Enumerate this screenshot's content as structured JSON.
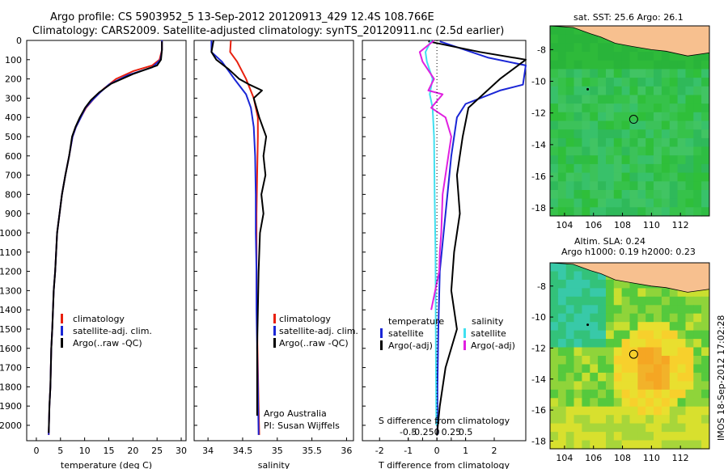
{
  "header": {
    "title_line1": "Argo profile: CS 5903952_5 13-Sep-2012 20120913_429 12.4S 108.766E",
    "title_line2": "Climatology: CARS2009. Satellite-adjusted climatology: synTS_20120911.nc (2.5d earlier)"
  },
  "footer": {
    "stamp": "IMOS 18-Sep-2012 17:02:28"
  },
  "colors": {
    "climatology": "#e8200e",
    "satellite": "#1a26d6",
    "argo": "#000000",
    "salinity_sat": "#40e0f0",
    "salinity_argo": "#e020e0",
    "land": "#f7c08f",
    "green": "#34c63c"
  },
  "chart_data": [
    {
      "id": "temperature",
      "type": "line",
      "xlabel": "temperature (deg C)",
      "ylabel": "",
      "xlim": [
        -2,
        31
      ],
      "ylim": [
        2080,
        0
      ],
      "xticks": [
        0,
        5,
        10,
        15,
        20,
        25,
        30
      ],
      "yticks": [
        0,
        100,
        200,
        300,
        400,
        500,
        600,
        700,
        800,
        900,
        1000,
        1100,
        1200,
        1300,
        1400,
        1500,
        1600,
        1700,
        1800,
        1900,
        2000
      ],
      "legend": [
        "climatology",
        "satellite-adj. clim.",
        "Argo(..raw -QC)"
      ],
      "series": [
        {
          "name": "climatology",
          "color": "#e8200e",
          "x": [
            26,
            26,
            25.5,
            24,
            20,
            16.5,
            14,
            12,
            10.3,
            9.2,
            8.2,
            7.5,
            6.8,
            6,
            5.3,
            4.8,
            4.3,
            3.9,
            3.6,
            3.3,
            3.1,
            2.9,
            2.7,
            2.55
          ],
          "y": [
            0,
            50,
            100,
            130,
            160,
            200,
            250,
            300,
            350,
            400,
            450,
            500,
            600,
            700,
            800,
            900,
            1000,
            1200,
            1300,
            1500,
            1600,
            1800,
            1900,
            2050
          ]
        },
        {
          "name": "satellite-adj. clim.",
          "color": "#1a26d6",
          "x": [
            26,
            26,
            25.7,
            24,
            19,
            15,
            13.2,
            11.6,
            10.2,
            9.2,
            8.2,
            7.5,
            6.8,
            6,
            5.3,
            4.8,
            4.3,
            3.9,
            3.6,
            3.3,
            3.1,
            2.9,
            2.7,
            2.55
          ],
          "y": [
            0,
            50,
            100,
            140,
            180,
            230,
            270,
            310,
            350,
            400,
            450,
            500,
            600,
            700,
            800,
            900,
            1000,
            1200,
            1300,
            1500,
            1600,
            1800,
            1900,
            2050
          ]
        },
        {
          "name": "Argo(..raw -QC)",
          "color": "#000000",
          "x": [
            26,
            26,
            25.8,
            25,
            20,
            15.5,
            13,
            11.3,
            10.1,
            9,
            8.1,
            7.4,
            6.8,
            6,
            5.3,
            4.8,
            4.3,
            3.9,
            3.6,
            3.3,
            3.1,
            2.9,
            2.7,
            2.55
          ],
          "y": [
            5,
            50,
            100,
            130,
            175,
            225,
            270,
            310,
            350,
            400,
            450,
            500,
            600,
            700,
            800,
            900,
            1000,
            1200,
            1300,
            1500,
            1600,
            1800,
            1900,
            2040
          ]
        }
      ]
    },
    {
      "id": "salinity",
      "type": "line",
      "xlabel": "salinity",
      "ylabel": "",
      "xlim": [
        33.8,
        36.1
      ],
      "ylim": [
        2080,
        0
      ],
      "xticks": [
        34,
        34.5,
        35,
        35.5,
        36
      ],
      "legend": [
        "climatology",
        "satellite-adj. clim.",
        "Argo(..raw -QC)"
      ],
      "annotation": [
        "Argo Australia",
        "PI: Susan Wijffels"
      ],
      "series": [
        {
          "name": "climatology",
          "color": "#e8200e",
          "x": [
            34.33,
            34.32,
            34.42,
            34.55,
            34.66,
            34.72,
            34.72,
            34.71,
            34.7,
            34.7,
            34.7,
            34.71,
            34.72,
            34.73,
            34.74
          ],
          "y": [
            0,
            60,
            110,
            200,
            300,
            400,
            500,
            700,
            900,
            1100,
            1300,
            1500,
            1700,
            1900,
            2050
          ]
        },
        {
          "name": "satellite-adj. clim.",
          "color": "#1a26d6",
          "x": [
            34.05,
            34.05,
            34.2,
            34.38,
            34.55,
            34.62,
            34.66,
            34.68,
            34.69,
            34.69,
            34.7,
            34.7,
            34.71,
            34.72,
            34.73
          ],
          "y": [
            0,
            60,
            110,
            200,
            280,
            350,
            450,
            600,
            800,
            1000,
            1200,
            1400,
            1600,
            1800,
            2050
          ]
        },
        {
          "name": "Argo(..raw -QC)",
          "color": "#000000",
          "x": [
            34.08,
            34.05,
            34.12,
            34.3,
            34.45,
            34.6,
            34.78,
            34.66,
            34.74,
            34.84,
            34.8,
            34.83,
            34.77,
            34.8,
            34.75,
            34.73,
            34.72,
            34.71,
            34.71,
            34.71
          ],
          "y": [
            0,
            60,
            100,
            150,
            200,
            230,
            260,
            300,
            400,
            500,
            600,
            700,
            800,
            900,
            1000,
            1200,
            1400,
            1600,
            1800,
            1950
          ]
        }
      ]
    },
    {
      "id": "differences",
      "type": "line",
      "xlabel": "T difference from climatology",
      "x2label": "S difference from climatology",
      "xlim": [
        -2.6,
        3.1
      ],
      "ylim": [
        2080,
        0
      ],
      "xticks": [
        -2,
        -1,
        0,
        1,
        2
      ],
      "x2ticks": [
        "-0.5",
        "-0.25",
        "0",
        "0.25",
        "0.5"
      ],
      "legend_temperature": [
        "temperature",
        "satellite",
        "Argo(-adj)"
      ],
      "legend_salinity": [
        "salinity",
        "satellite",
        "Argo(-adj)"
      ],
      "series": [
        {
          "name": "temperature satellite",
          "color": "#1a26d6",
          "x": [
            0.1,
            1.8,
            3.1,
            3,
            2.2,
            1,
            0.7,
            0.5,
            0.3,
            0.1,
            0.05,
            0.02,
            0.02
          ],
          "y": [
            5,
            90,
            130,
            230,
            260,
            330,
            400,
            600,
            900,
            1200,
            1500,
            1800,
            2050
          ]
        },
        {
          "name": "temperature Argo(-adj)",
          "color": "#000000",
          "x": [
            -0.3,
            1.5,
            3.1,
            2.2,
            1.1,
            0.9,
            0.7,
            0.8,
            0.6,
            0.5,
            0.7,
            0.3,
            0.1,
            0
          ],
          "y": [
            5,
            60,
            100,
            200,
            350,
            500,
            700,
            900,
            1100,
            1300,
            1500,
            1700,
            1900,
            2050
          ]
        },
        {
          "name": "salinity satellite",
          "color": "#40e0f0",
          "x": [
            -0.2,
            -0.4,
            -0.35,
            -0.15,
            -0.25,
            -0.15,
            -0.1,
            -0.08,
            -0.05,
            -0.04,
            -0.02
          ],
          "y": [
            0,
            60,
            110,
            200,
            280,
            350,
            500,
            800,
            1100,
            1500,
            2000
          ]
        },
        {
          "name": "salinity Argo(-adj)",
          "color": "#e020e0",
          "x": [
            -0.1,
            -0.6,
            -0.5,
            -0.1,
            -0.3,
            0.2,
            -0.2,
            0.3,
            0.5,
            0.4,
            0.2,
            0.15,
            0.1,
            0.08,
            -0.2
          ],
          "y": [
            0,
            60,
            110,
            200,
            260,
            280,
            350,
            400,
            500,
            600,
            800,
            1000,
            1100,
            1200,
            1400
          ]
        }
      ]
    },
    {
      "id": "sst_map",
      "type": "heatmap",
      "title": "sat. SST: 25.6 Argo: 26.1",
      "xticks": [
        104,
        106,
        108,
        110,
        112
      ],
      "yticks": [
        -8,
        -10,
        -12,
        -14,
        -16,
        -18
      ],
      "xlim": [
        103,
        114
      ],
      "ylim": [
        -18.5,
        -6.5
      ],
      "argo_position": [
        108.77,
        -12.4
      ]
    },
    {
      "id": "sla_map",
      "type": "heatmap",
      "title": "Altim. SLA: 0.24",
      "subtitle": "Argo h1000: 0.19 h2000: 0.23",
      "xticks": [
        104,
        106,
        108,
        110,
        112
      ],
      "yticks": [
        -8,
        -10,
        -12,
        -14,
        -16,
        -18
      ],
      "xlim": [
        103,
        114
      ],
      "ylim": [
        -18.5,
        -6.5
      ],
      "argo_position": [
        108.77,
        -12.4
      ]
    }
  ]
}
